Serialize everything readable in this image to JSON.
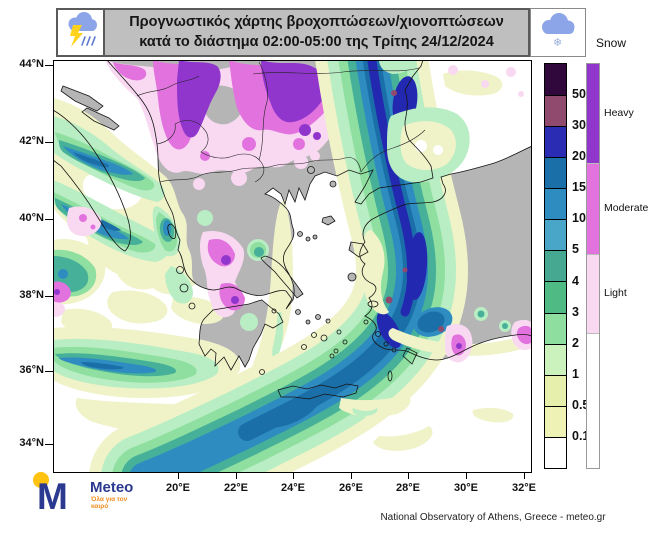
{
  "title_bar": {
    "line1": "Προγνωστικός χάρτης βροχοπτώσεων/χιονοπτώσεων",
    "line2": "κατά το διάστημα 02:00-05:00 της Τρίτης 24/12/2024"
  },
  "icons": {
    "left": "storm-cloud-lightning-rain",
    "right": "snow-cloud-snowflake"
  },
  "map": {
    "lat_ticks": [
      "44°N",
      "42°N",
      "40°N",
      "38°N",
      "36°N",
      "34°N"
    ],
    "lon_ticks": [
      "20°E",
      "22°E",
      "24°E",
      "26°E",
      "28°E",
      "30°E",
      "32°E"
    ],
    "region": "Greece and surrounding Balkans, Aegean, western Turkey"
  },
  "legend": {
    "rain": {
      "levels": [
        "50",
        "30",
        "20",
        "15",
        "10",
        "5",
        "4",
        "3",
        "2",
        "1",
        "0.5",
        "0.1"
      ],
      "colors_top_to_bottom": [
        "#30083c",
        "#8f4a6e",
        "#2a2db4",
        "#1b6fa8",
        "#2f8cc0",
        "#4aa6c8",
        "#46a890",
        "#50ba85",
        "#8edf9f",
        "#cbf2bd",
        "#e6f0ac",
        "#eef2b4",
        "#ffffff"
      ]
    },
    "snow": {
      "title": "Snow",
      "classes": [
        {
          "label": "Heavy",
          "color": "#9136cd"
        },
        {
          "label": "Moderate",
          "color": "#e273de"
        },
        {
          "label": "Light",
          "color": "#f9d8f2"
        },
        {
          "label": "",
          "color": "#ffffff"
        }
      ]
    }
  },
  "palette": {
    "land": "#b5b5b5",
    "sea": "#ffffff",
    "title_bar_bg": "#bfbfbf",
    "coastline": "#151515"
  },
  "logo": {
    "name": "Meteo",
    "tagline": "Όλα για τον καιρό"
  },
  "attribution": "National Observatory of Athens, Greece - meteo.gr"
}
